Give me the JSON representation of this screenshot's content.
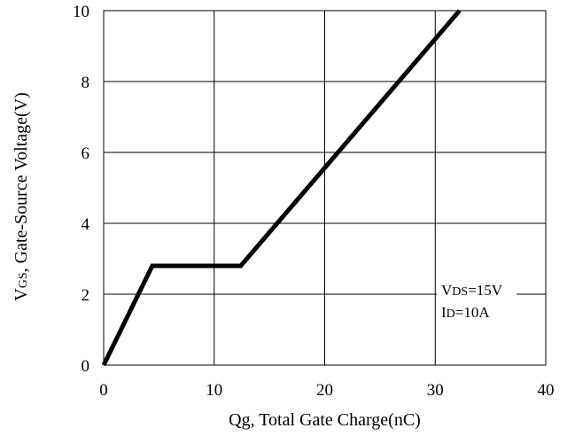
{
  "chart_data": {
    "type": "line",
    "xlabel": "Qg, Total Gate Charge(nC)",
    "ylabel": {
      "prefix": "V",
      "subscript": "GS",
      "rest": ", Gate-Source Voltage(V)"
    },
    "xlim": [
      0,
      40
    ],
    "ylim": [
      0,
      10
    ],
    "xticks": [
      0,
      10,
      20,
      30,
      40
    ],
    "yticks": [
      0,
      2,
      4,
      6,
      8,
      10
    ],
    "xtick_labels": [
      "0",
      "10",
      "20",
      "30",
      "40"
    ],
    "ytick_labels": [
      "0",
      "2",
      "4",
      "6",
      "8",
      "10"
    ],
    "grid": true,
    "series": [
      {
        "x": [
          0,
          4.4,
          12.4,
          32.2
        ],
        "y": [
          0,
          2.8,
          2.8,
          10
        ]
      }
    ],
    "annotations": [
      {
        "prefix": "V",
        "subscript": "DS",
        "rest": "=15V"
      },
      {
        "prefix": "I",
        "subscript": "D",
        "rest": "=10A"
      }
    ],
    "colors": {
      "line": "#000000",
      "grid": "#000000"
    }
  }
}
